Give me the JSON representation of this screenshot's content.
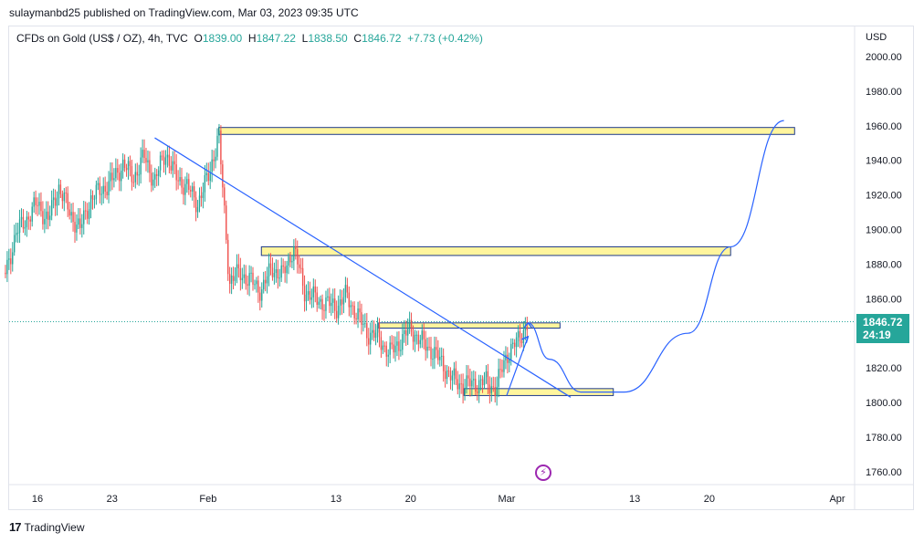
{
  "header": {
    "published": "sulaymanbd25 published on TradingView.com, Mar 03, 2023 09:35 UTC",
    "symbol": "CFDs on Gold (US$ / OZ), 4h, TVC",
    "open_label": "O",
    "open": "1839.00",
    "high_label": "H",
    "high": "1847.22",
    "low_label": "L",
    "low": "1838.50",
    "close_label": "C",
    "close": "1846.72",
    "change": "+7.73 (+0.42%)",
    "currency": "USD"
  },
  "price_tag": {
    "price": "1846.72",
    "countdown": "24:19"
  },
  "footer": {
    "brand": "TradingView"
  },
  "colors": {
    "up": "#26a69a",
    "down": "#ef5350",
    "line": "#2962ff",
    "zone_fill": "#fff59d",
    "zone_border": "#1e3a8a",
    "flash": "#9c27b0"
  },
  "chart_data": {
    "type": "candlestick",
    "ylim": [
      1750,
      2015
    ],
    "y_ticks": [
      "2000.00",
      "1980.00",
      "1960.00",
      "1940.00",
      "1920.00",
      "1900.00",
      "1880.00",
      "1860.00",
      "1840.00",
      "1820.00",
      "1800.00",
      "1780.00",
      "1760.00"
    ],
    "x_ticks": [
      "16",
      "23",
      "Feb",
      "13",
      "20",
      "Mar",
      "13",
      "20",
      "Apr"
    ],
    "last_price": 1846.72,
    "price_path": [
      [
        "Jan 13",
        1875
      ],
      [
        "Jan 14",
        1898
      ],
      [
        "Jan 16",
        1915
      ],
      [
        "Jan 17",
        1905
      ],
      [
        "Jan 18",
        1925
      ],
      [
        "Jan 19",
        1910
      ],
      [
        "Jan 20",
        1900
      ],
      [
        "Jan 21",
        1918
      ],
      [
        "Jan 23",
        1928
      ],
      [
        "Jan 24",
        1938
      ],
      [
        "Jan 25",
        1930
      ],
      [
        "Jan 26",
        1942
      ],
      [
        "Jan 27",
        1928
      ],
      [
        "Jan 28",
        1945
      ],
      [
        "Jan 29",
        1930
      ],
      [
        "Jan 30",
        1925
      ],
      [
        "Jan 31",
        1915
      ],
      [
        "Feb 1",
        1930
      ],
      [
        "Feb 2",
        1955
      ],
      [
        "Feb 3",
        1870
      ],
      [
        "Feb 4",
        1875
      ],
      [
        "Feb 6",
        1865
      ],
      [
        "Feb 7",
        1878
      ],
      [
        "Feb 8",
        1873
      ],
      [
        "Feb 9",
        1890
      ],
      [
        "Feb 10",
        1865
      ],
      [
        "Feb 11",
        1860
      ],
      [
        "Feb 13",
        1855
      ],
      [
        "Feb 14",
        1862
      ],
      [
        "Feb 15",
        1850
      ],
      [
        "Feb 16",
        1840
      ],
      [
        "Feb 17",
        1838
      ],
      [
        "Feb 18",
        1828
      ],
      [
        "Feb 20",
        1843
      ],
      [
        "Feb 21",
        1835
      ],
      [
        "Feb 22",
        1830
      ],
      [
        "Feb 23",
        1822
      ],
      [
        "Feb 24",
        1813
      ],
      [
        "Feb 25",
        1810
      ],
      [
        "Feb 27",
        1812
      ],
      [
        "Feb 28",
        1808
      ],
      [
        "Mar 1",
        1828
      ],
      [
        "Mar 2",
        1835
      ],
      [
        "Mar 3",
        1846.72
      ]
    ],
    "zones": [
      {
        "from": "Feb 2",
        "to": "Mar 28",
        "low": 1955,
        "high": 1959
      },
      {
        "from": "Feb 6",
        "to": "Mar 22",
        "low": 1885,
        "high": 1890
      },
      {
        "from": "Feb 17",
        "to": "Mar 6",
        "low": 1843,
        "high": 1846
      },
      {
        "from": "Feb 25",
        "to": "Mar 11",
        "low": 1804,
        "high": 1808
      }
    ],
    "trendlines": [
      {
        "from": [
          "Jan 27",
          1953
        ],
        "to": [
          "Mar 7",
          1803
        ]
      },
      {
        "from": [
          "Mar 1",
          1804
        ],
        "to": [
          "Mar 3",
          1838
        ]
      }
    ],
    "projection": [
      [
        "Mar 3",
        1846
      ],
      [
        "Mar 5",
        1825
      ],
      [
        "Mar 8",
        1806
      ],
      [
        "Mar 12",
        1806
      ],
      [
        "Mar 18",
        1840
      ],
      [
        "Mar 22",
        1890
      ],
      [
        "Mar 27",
        1963
      ]
    ]
  }
}
